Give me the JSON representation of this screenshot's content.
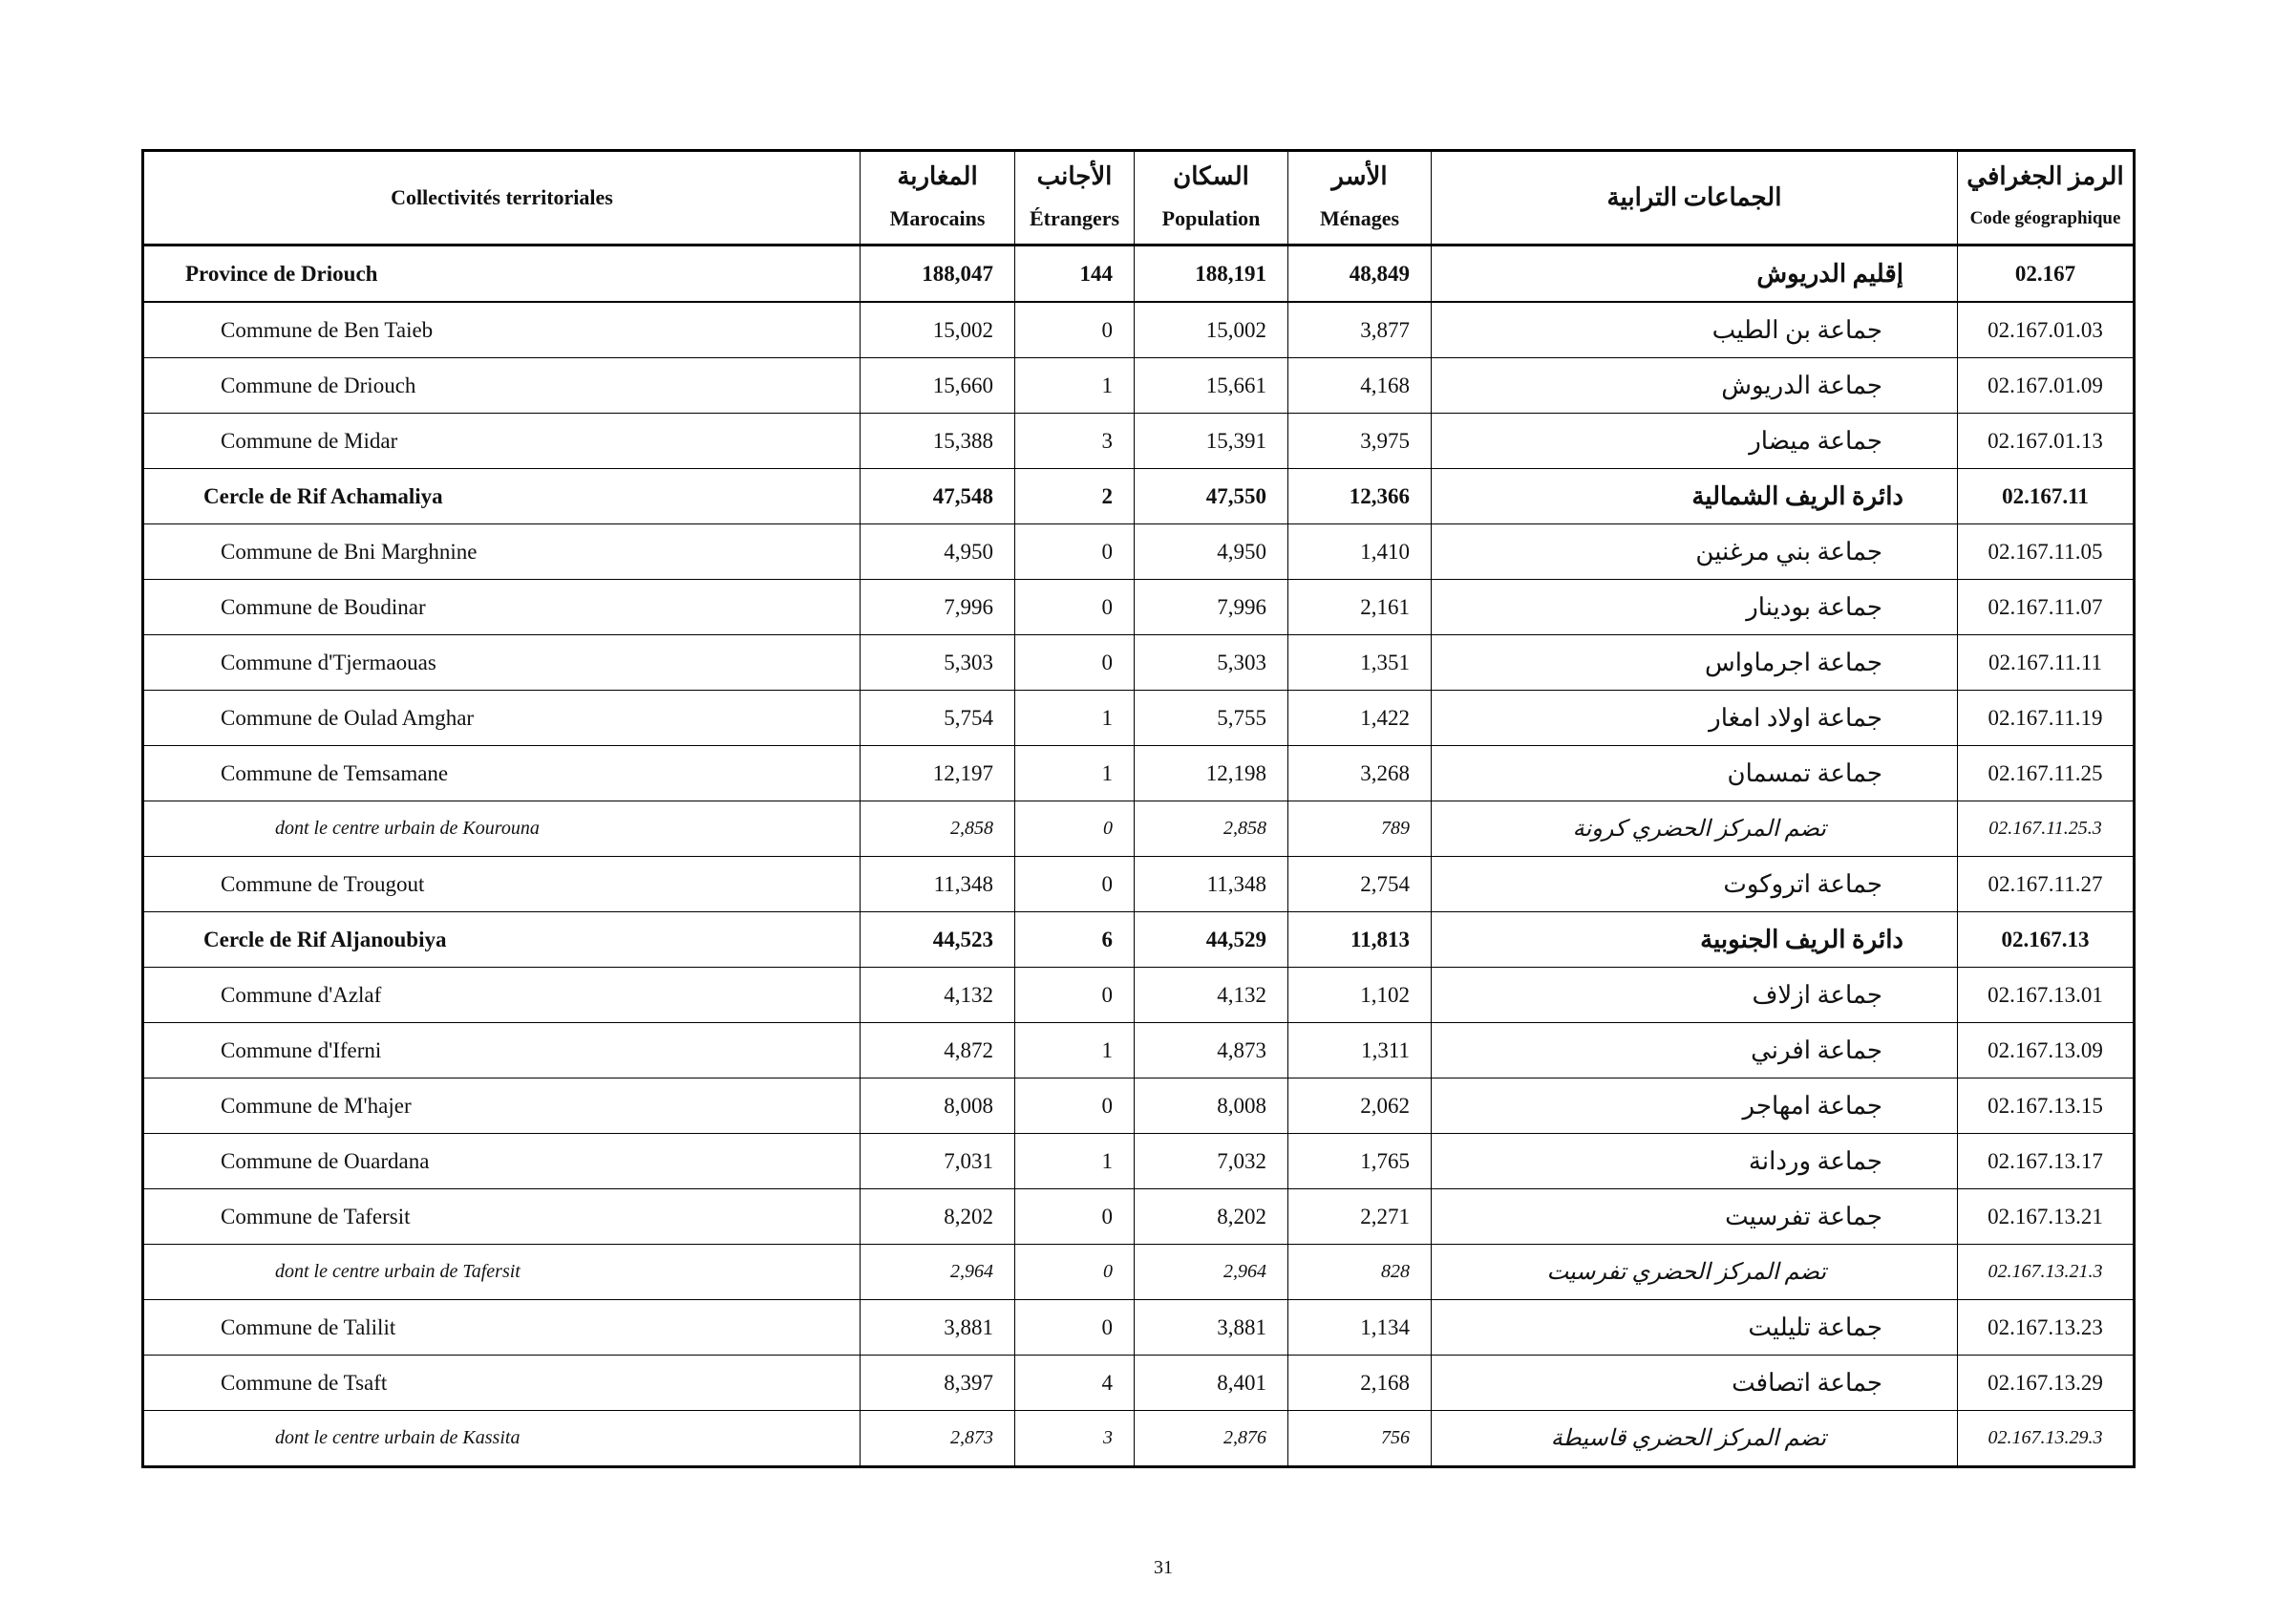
{
  "header": {
    "territory_fr": "Collectivités territoriales",
    "columns": [
      {
        "ar": "المغاربة",
        "fr": "Marocains"
      },
      {
        "ar": "الأجانب",
        "fr": "Étrangers"
      },
      {
        "ar": "السكان",
        "fr": "Population"
      },
      {
        "ar": "الأسر",
        "fr": "Ménages"
      }
    ],
    "territory_ar": "الجماعات الترابية",
    "code": {
      "ar": "الرمز الجغرافي",
      "fr": "Code géographique"
    }
  },
  "province": {
    "fr": "Province de Driouch",
    "marocains": "188,047",
    "etrangers": "144",
    "population": "188,191",
    "menages": "48,849",
    "ar": "إقليم الدريوش",
    "code": "02.167",
    "communes": [
      {
        "fr": "Commune de Ben Taieb",
        "marocains": "15,002",
        "etrangers": "0",
        "population": "15,002",
        "menages": "3,877",
        "ar": "جماعة بن الطيب",
        "code": "02.167.01.03"
      },
      {
        "fr": "Commune de Driouch",
        "marocains": "15,660",
        "etrangers": "1",
        "population": "15,661",
        "menages": "4,168",
        "ar": "جماعة الدريوش",
        "code": "02.167.01.09"
      },
      {
        "fr": "Commune de Midar",
        "marocains": "15,388",
        "etrangers": "3",
        "population": "15,391",
        "menages": "3,975",
        "ar": "جماعة ميضار",
        "code": "02.167.01.13"
      }
    ],
    "cercles": [
      {
        "fr": "Cercle de Rif Achamaliya",
        "marocains": "47,548",
        "etrangers": "2",
        "population": "47,550",
        "menages": "12,366",
        "ar": "دائرة الريف الشمالية",
        "code": "02.167.11",
        "communes": [
          {
            "fr": "Commune de Bni Marghnine",
            "marocains": "4,950",
            "etrangers": "0",
            "population": "4,950",
            "menages": "1,410",
            "ar": "جماعة بني مرغنين",
            "code": "02.167.11.05"
          },
          {
            "fr": "Commune de Boudinar",
            "marocains": "7,996",
            "etrangers": "0",
            "population": "7,996",
            "menages": "2,161",
            "ar": "جماعة بودينار",
            "code": "02.167.11.07"
          },
          {
            "fr": "Commune d'Tjermaouas",
            "marocains": "5,303",
            "etrangers": "0",
            "population": "5,303",
            "menages": "1,351",
            "ar": "جماعة اجرماواس",
            "code": "02.167.11.11"
          },
          {
            "fr": "Commune de Oulad Amghar",
            "marocains": "5,754",
            "etrangers": "1",
            "population": "5,755",
            "menages": "1,422",
            "ar": "جماعة اولاد امغار",
            "code": "02.167.11.19"
          },
          {
            "fr": "Commune de Temsamane",
            "marocains": "12,197",
            "etrangers": "1",
            "population": "12,198",
            "menages": "3,268",
            "ar": "جماعة تمسمان",
            "code": "02.167.11.25",
            "centre": {
              "fr": "dont le centre urbain de Kourouna",
              "marocains": "2,858",
              "etrangers": "0",
              "population": "2,858",
              "menages": "789",
              "ar": "تضم المركز الحضري كرونة",
              "code": "02.167.11.25.3"
            }
          },
          {
            "fr": "Commune de Trougout",
            "marocains": "11,348",
            "etrangers": "0",
            "population": "11,348",
            "menages": "2,754",
            "ar": "جماعة اتروكوت",
            "code": "02.167.11.27"
          }
        ]
      },
      {
        "fr": "Cercle de Rif Aljanoubiya",
        "marocains": "44,523",
        "etrangers": "6",
        "population": "44,529",
        "menages": "11,813",
        "ar": "دائرة الريف الجنوبية",
        "code": "02.167.13",
        "communes": [
          {
            "fr": "Commune d'Azlaf",
            "marocains": "4,132",
            "etrangers": "0",
            "population": "4,132",
            "menages": "1,102",
            "ar": "جماعة ازلاف",
            "code": "02.167.13.01"
          },
          {
            "fr": "Commune d'Iferni",
            "marocains": "4,872",
            "etrangers": "1",
            "population": "4,873",
            "menages": "1,311",
            "ar": "جماعة افرني",
            "code": "02.167.13.09"
          },
          {
            "fr": "Commune de M'hajer",
            "marocains": "8,008",
            "etrangers": "0",
            "population": "8,008",
            "menages": "2,062",
            "ar": "جماعة امهاجر",
            "code": "02.167.13.15"
          },
          {
            "fr": "Commune de Ouardana",
            "marocains": "7,031",
            "etrangers": "1",
            "population": "7,032",
            "menages": "1,765",
            "ar": "جماعة وردانة",
            "code": "02.167.13.17"
          },
          {
            "fr": "Commune de Tafersit",
            "marocains": "8,202",
            "etrangers": "0",
            "population": "8,202",
            "menages": "2,271",
            "ar": "جماعة تفرسيت",
            "code": "02.167.13.21",
            "centre": {
              "fr": "dont le centre urbain de Tafersit",
              "marocains": "2,964",
              "etrangers": "0",
              "population": "2,964",
              "menages": "828",
              "ar": "تضم المركز الحضري تفرسيت",
              "code": "02.167.13.21.3"
            }
          },
          {
            "fr": "Commune de Talilit",
            "marocains": "3,881",
            "etrangers": "0",
            "population": "3,881",
            "menages": "1,134",
            "ar": "جماعة تليليت",
            "code": "02.167.13.23"
          },
          {
            "fr": "Commune de Tsaft",
            "marocains": "8,397",
            "etrangers": "4",
            "population": "8,401",
            "menages": "2,168",
            "ar": "جماعة اتصافت",
            "code": "02.167.13.29",
            "centre": {
              "fr": "dont le centre urbain de Kassita",
              "marocains": "2,873",
              "etrangers": "3",
              "population": "2,876",
              "menages": "756",
              "ar": "تضم المركز الحضري قاسيطة",
              "code": "02.167.13.29.3"
            }
          }
        ]
      }
    ]
  },
  "page_number": "31"
}
